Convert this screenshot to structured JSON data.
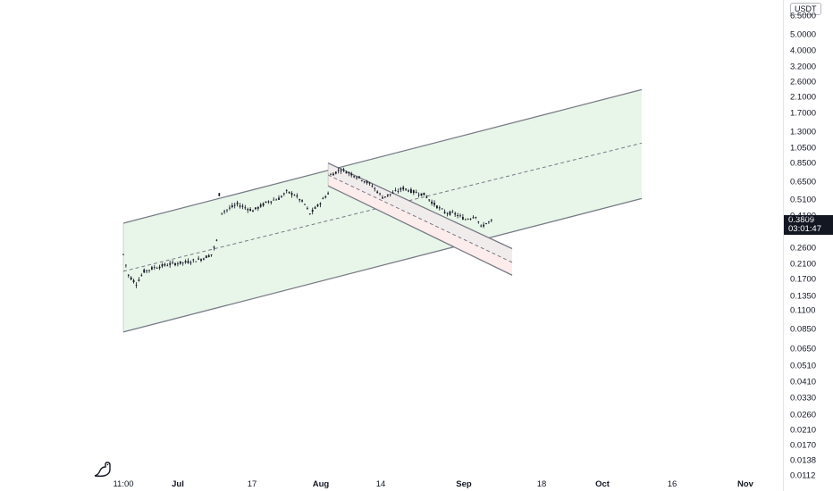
{
  "currency": "USDT",
  "current_price": "0.3809",
  "countdown": "03:01:47",
  "colors": {
    "candle": "#131722",
    "channel_line": "#787b86",
    "up_channel_fill": "#e8f5e9",
    "down_upper_fill": "#f1ecec",
    "down_lower_fill": "#fdecec",
    "price_tag_bg": "#131722"
  },
  "logo_icon": "dinosaur-icon",
  "chart_data": {
    "type": "candlestick",
    "y_scale": "log",
    "y_ticks": [
      "6.5000",
      "5.0000",
      "4.0000",
      "3.2000",
      "2.6000",
      "2.1000",
      "1.7000",
      "1.3000",
      "1.0500",
      "0.8500",
      "0.6500",
      "0.5100",
      "0.4100",
      "0.2600",
      "0.2100",
      "0.1700",
      "0.1350",
      "0.1100",
      "0.0850",
      "0.0650",
      "0.0510",
      "0.0410",
      "0.0330",
      "0.0260",
      "0.0210",
      "0.0170",
      "0.0138",
      "0.0112"
    ],
    "x_ticks": [
      {
        "label": "11:00",
        "bold": false
      },
      {
        "label": "Jul",
        "bold": true
      },
      {
        "label": "17",
        "bold": false
      },
      {
        "label": "Aug",
        "bold": true
      },
      {
        "label": "14",
        "bold": false
      },
      {
        "label": "Sep",
        "bold": true
      },
      {
        "label": "18",
        "bold": false
      },
      {
        "label": "Oct",
        "bold": true
      },
      {
        "label": "16",
        "bold": false
      },
      {
        "label": "Nov",
        "bold": true
      }
    ],
    "price_path": [
      [
        0,
        0.24
      ],
      [
        2,
        0.18
      ],
      [
        5,
        0.16
      ],
      [
        8,
        0.19
      ],
      [
        12,
        0.2
      ],
      [
        18,
        0.21
      ],
      [
        24,
        0.215
      ],
      [
        30,
        0.225
      ],
      [
        34,
        0.24
      ],
      [
        36,
        0.29
      ],
      [
        37,
        0.55
      ],
      [
        38,
        0.43
      ],
      [
        44,
        0.48
      ],
      [
        50,
        0.44
      ],
      [
        56,
        0.5
      ],
      [
        60,
        0.52
      ],
      [
        63,
        0.57
      ],
      [
        66,
        0.55
      ],
      [
        70,
        0.48
      ],
      [
        72,
        0.42
      ],
      [
        75,
        0.47
      ],
      [
        79,
        0.56
      ],
      [
        80,
        0.72
      ],
      [
        84,
        0.78
      ],
      [
        88,
        0.73
      ],
      [
        92,
        0.68
      ],
      [
        96,
        0.62
      ],
      [
        100,
        0.53
      ],
      [
        104,
        0.56
      ],
      [
        108,
        0.6
      ],
      [
        112,
        0.57
      ],
      [
        116,
        0.55
      ],
      [
        120,
        0.48
      ],
      [
        124,
        0.43
      ],
      [
        128,
        0.42
      ],
      [
        132,
        0.39
      ],
      [
        136,
        0.41
      ],
      [
        138,
        0.35
      ],
      [
        140,
        0.37
      ],
      [
        142,
        0.38
      ]
    ],
    "price_line_tag": 0.3809,
    "up_channel": {
      "upper": [
        [
          0,
          0.37
        ],
        [
          200,
          2.35
        ]
      ],
      "median": [
        [
          0,
          0.19
        ],
        [
          200,
          1.12
        ]
      ],
      "lower": [
        [
          0,
          0.082
        ],
        [
          200,
          0.52
        ]
      ]
    },
    "down_channel": {
      "upper": [
        [
          79,
          0.85
        ],
        [
          150,
          0.26
        ]
      ],
      "median": [
        [
          79,
          0.72
        ],
        [
          150,
          0.215
        ]
      ],
      "lower": [
        [
          79,
          0.62
        ],
        [
          150,
          0.18
        ]
      ]
    }
  }
}
